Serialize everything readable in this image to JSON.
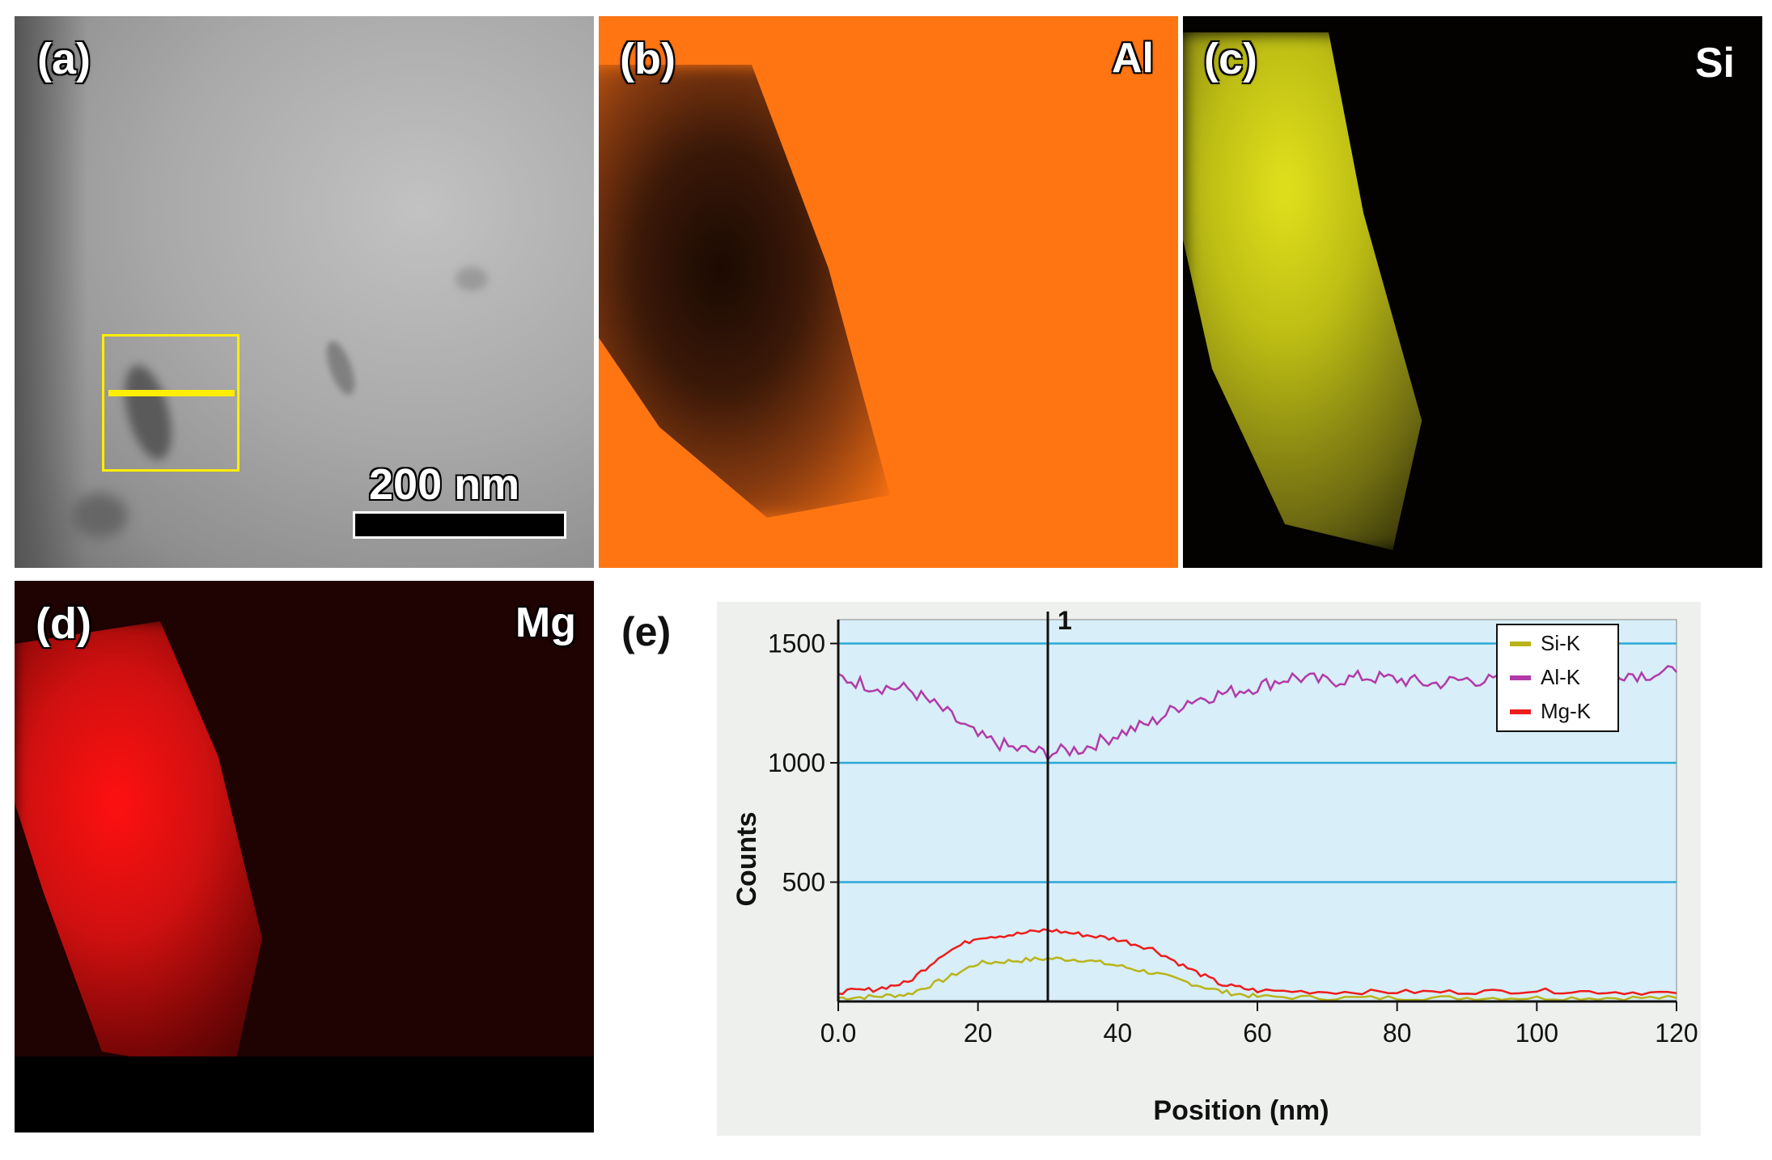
{
  "panels": {
    "a": {
      "label": "(a)",
      "scale_bar": "200 nm"
    },
    "b": {
      "label": "(b)",
      "element": "Al"
    },
    "c": {
      "label": "(c)",
      "element": "Si"
    },
    "d": {
      "label": "(d)",
      "element": "Mg"
    },
    "e": {
      "label": "(e)"
    }
  },
  "colors": {
    "al_map": "#ff7512",
    "si_map": "#e2e11c",
    "mg_map": "#ff1010",
    "plot_bg": "#d8eef8",
    "gridline": "#2aa8d8",
    "si_line": "#b9b41a",
    "al_line": "#b23aa8",
    "mg_line": "#ee1c1c",
    "marker": "#ffee00"
  },
  "chart_data": {
    "type": "line",
    "title": "",
    "xlabel": "Position (nm)",
    "ylabel": "Counts",
    "xlim": [
      0,
      120
    ],
    "ylim": [
      0,
      1600
    ],
    "xticks": [
      "0.0",
      "20",
      "40",
      "60",
      "80",
      "100",
      "120"
    ],
    "yticks": [
      "500",
      "1000",
      "1500"
    ],
    "ytick_values": [
      500,
      1000,
      1500
    ],
    "grid": "horizontal",
    "cursor": {
      "x": 30,
      "label": "1"
    },
    "legend": {
      "position": "top-right",
      "entries": [
        "Si-K",
        "Al-K",
        "Mg-K"
      ]
    },
    "series": [
      {
        "name": "Si-K",
        "x": [
          0,
          5,
          10,
          15,
          20,
          25,
          30,
          35,
          40,
          45,
          50,
          55,
          60,
          70,
          80,
          90,
          100,
          110,
          120
        ],
        "values": [
          15,
          20,
          30,
          90,
          160,
          170,
          180,
          175,
          150,
          120,
          80,
          40,
          20,
          15,
          15,
          15,
          15,
          15,
          15
        ]
      },
      {
        "name": "Al-K",
        "x": [
          0,
          5,
          10,
          15,
          20,
          25,
          30,
          35,
          40,
          45,
          50,
          55,
          60,
          65,
          70,
          75,
          80,
          85,
          90,
          95,
          100,
          105,
          110,
          115,
          120
        ],
        "values": [
          1360,
          1320,
          1310,
          1220,
          1110,
          1060,
          1040,
          1060,
          1120,
          1170,
          1260,
          1290,
          1320,
          1360,
          1340,
          1360,
          1350,
          1330,
          1350,
          1340,
          1350,
          1370,
          1380,
          1370,
          1380
        ]
      },
      {
        "name": "Mg-K",
        "x": [
          0,
          5,
          10,
          15,
          20,
          25,
          30,
          35,
          40,
          45,
          50,
          55,
          60,
          70,
          80,
          90,
          100,
          110,
          120
        ],
        "values": [
          40,
          50,
          80,
          200,
          270,
          280,
          300,
          280,
          260,
          220,
          140,
          70,
          45,
          40,
          40,
          40,
          45,
          40,
          35
        ]
      }
    ]
  }
}
